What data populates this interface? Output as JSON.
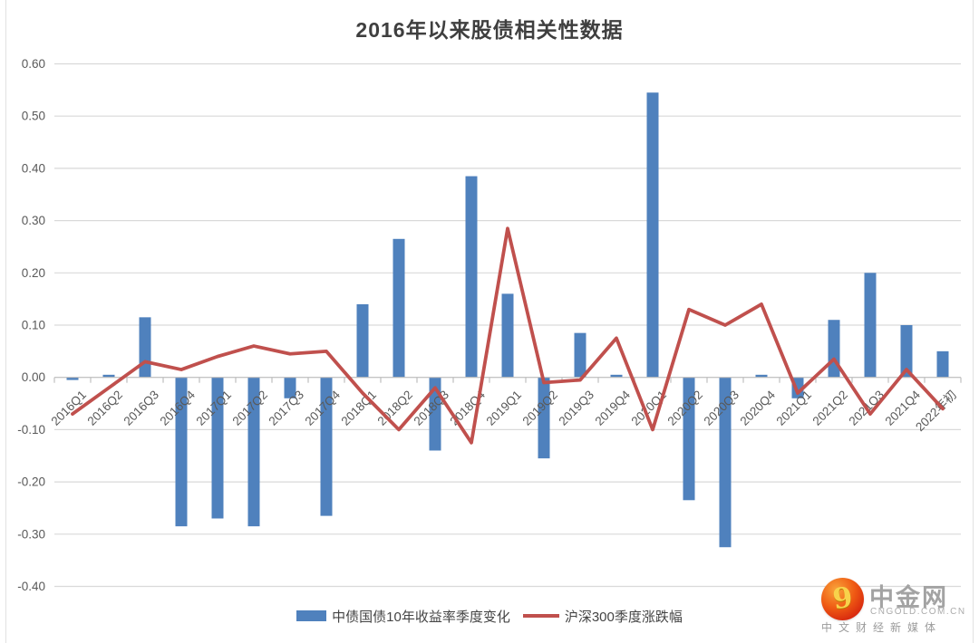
{
  "title": "2016年以来股债相关性数据",
  "legend": {
    "bar_label": "中债国债10年收益率季度变化",
    "line_label": "沪深300季度涨跌幅"
  },
  "watermark": {
    "name": "中金网",
    "domain": "CNGOLD.COM.CN",
    "tagline": "中文财经新媒体",
    "swirl_glyph": "9"
  },
  "colors": {
    "bar": "#4F81BD",
    "line": "#C0504D",
    "gridline": "#D9D9D9",
    "axis": "#BFBFBF",
    "tick_label": "#595959",
    "title": "#3F3F3F"
  },
  "chart_data": {
    "type": "bar",
    "title": "2016年以来股债相关性数据",
    "xlabel": "",
    "ylabel": "",
    "ylim": [
      -0.4,
      0.6
    ],
    "ytick_step": 0.1,
    "grid": true,
    "legend_position": "bottom",
    "categories": [
      "2016Q1",
      "2016Q2",
      "2016Q3",
      "2016Q4",
      "2017Q1",
      "2017Q2",
      "2017Q3",
      "2017Q4",
      "2018Q1",
      "2018Q2",
      "2018Q3",
      "2018Q4",
      "2019Q1",
      "2019Q2",
      "2019Q3",
      "2019Q4",
      "2020Q1",
      "2020Q2",
      "2020Q3",
      "2020Q4",
      "2021Q1",
      "2021Q2",
      "2021Q3",
      "2021Q4",
      "2022年初"
    ],
    "series": [
      {
        "name": "中债国债10年收益率季度变化",
        "type": "bar",
        "color": "#4F81BD",
        "values": [
          -0.005,
          0.005,
          0.115,
          -0.285,
          -0.27,
          -0.285,
          -0.04,
          -0.265,
          0.14,
          0.265,
          -0.14,
          0.385,
          0.16,
          -0.155,
          0.085,
          0.005,
          0.545,
          -0.235,
          -0.325,
          0.005,
          -0.04,
          0.11,
          0.2,
          0.1,
          0.05
        ]
      },
      {
        "name": "沪深300季度涨跌幅",
        "type": "line",
        "color": "#C0504D",
        "values": [
          -0.07,
          -0.02,
          0.03,
          0.015,
          0.04,
          0.06,
          0.045,
          0.05,
          -0.03,
          -0.1,
          -0.02,
          -0.125,
          0.285,
          -0.01,
          -0.005,
          0.075,
          -0.1,
          0.13,
          0.1,
          0.14,
          -0.03,
          0.035,
          -0.07,
          0.015,
          -0.06
        ]
      }
    ]
  }
}
